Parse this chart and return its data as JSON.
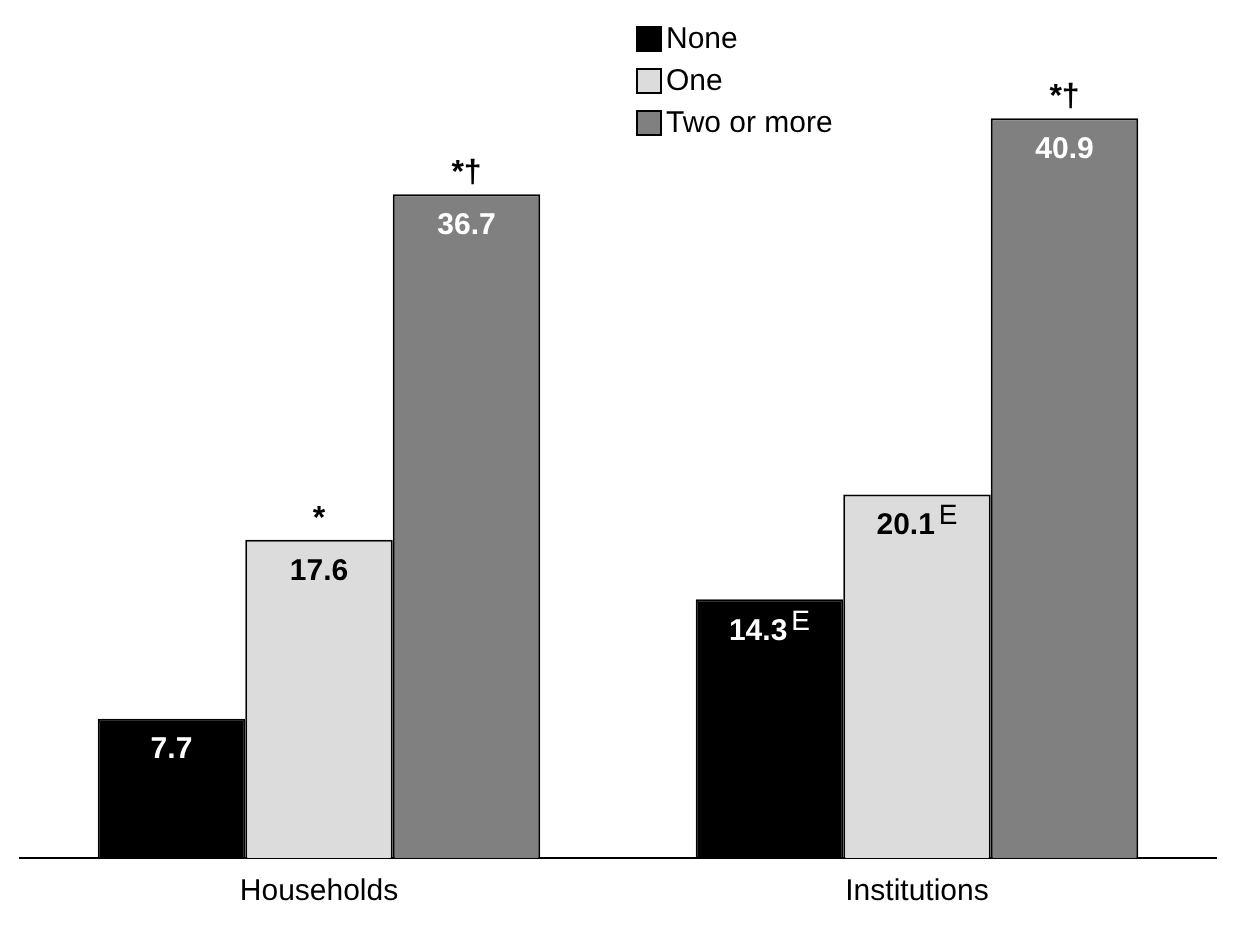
{
  "chart_data": {
    "type": "bar",
    "categories": [
      "Households",
      "Institutions"
    ],
    "series": [
      {
        "name": "None",
        "color": "#000000",
        "values": [
          7.7,
          14.3
        ],
        "value_labels": [
          "7.7",
          "14.3$^{E}$"
        ]
      },
      {
        "name": "One",
        "color": "#dcdcdc",
        "values": [
          17.6,
          20.1
        ],
        "value_labels": [
          "17.6",
          "20.1$^{E}$"
        ]
      },
      {
        "name": "Two or more",
        "color": "#808080",
        "values": [
          36.7,
          40.9
        ],
        "value_labels": [
          "36.7",
          "40.9"
        ]
      }
    ],
    "annotations": [
      {
        "text": "*",
        "x": "Households",
        "y": 17.6
      },
      "*†",
      "*†"
    ],
    "legend": "top",
    "grid": false
  }
}
